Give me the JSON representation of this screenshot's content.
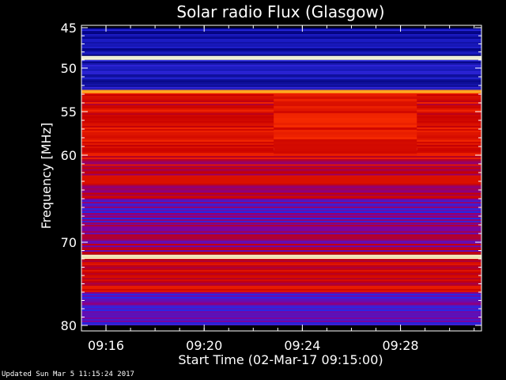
{
  "chart_data": {
    "type": "heatmap",
    "title": "Solar radio Flux (Glasgow)",
    "xlabel": "Start Time (02-Mar-17 09:15:00)",
    "ylabel": "Frequency [MHz]",
    "xlim_minutes_after_0915": [
      0,
      16.3
    ],
    "ylim_mhz": [
      45,
      80
    ],
    "y_ticks": [
      "45",
      "50",
      "55",
      "60",
      "70",
      "80"
    ],
    "y_tick_values": [
      45,
      50,
      55,
      60,
      70,
      80
    ],
    "x_ticks": [
      "09:16",
      "09:20",
      "09:24",
      "09:28"
    ],
    "x_tick_values": [
      "09:16",
      "09:20",
      "09:24",
      "09:28"
    ],
    "y_scale": "nonlinear",
    "colormap": "blue-red-yellow-white",
    "colors": {
      "background": "#000000",
      "low": "#0000b0",
      "mid": "#d00000",
      "high": "#ffff80",
      "max": "#ffffff",
      "axis": "#ffffff"
    },
    "bands": [
      {
        "from": 45.0,
        "to": 48.5,
        "level": 0.08
      },
      {
        "from": 48.5,
        "to": 49.0,
        "level": 1.0
      },
      {
        "from": 49.0,
        "to": 52.5,
        "level": 0.12
      },
      {
        "from": 52.5,
        "to": 53.0,
        "level": 0.75
      },
      {
        "from": 53.0,
        "to": 60.5,
        "level": 0.55
      },
      {
        "from": 60.5,
        "to": 65.0,
        "level": 0.48
      },
      {
        "from": 65.0,
        "to": 68.0,
        "level": 0.3
      },
      {
        "from": 68.0,
        "to": 71.5,
        "level": 0.4
      },
      {
        "from": 71.5,
        "to": 72.0,
        "level": 0.95
      },
      {
        "from": 72.0,
        "to": 76.0,
        "level": 0.5
      },
      {
        "from": 76.0,
        "to": 80.0,
        "level": 0.28
      }
    ],
    "features": [
      {
        "type": "horizontal_line",
        "freq": 59.3,
        "start": "09:22:50",
        "end": "09:28:40",
        "level": 0.9
      },
      {
        "type": "patch",
        "freq_from": 53.0,
        "freq_to": 60.0,
        "start": "09:22:50",
        "end": "09:28:40",
        "level": 0.6
      }
    ]
  },
  "footer": {
    "updated": "Updated Sun Mar  5 11:15:24 2017"
  }
}
